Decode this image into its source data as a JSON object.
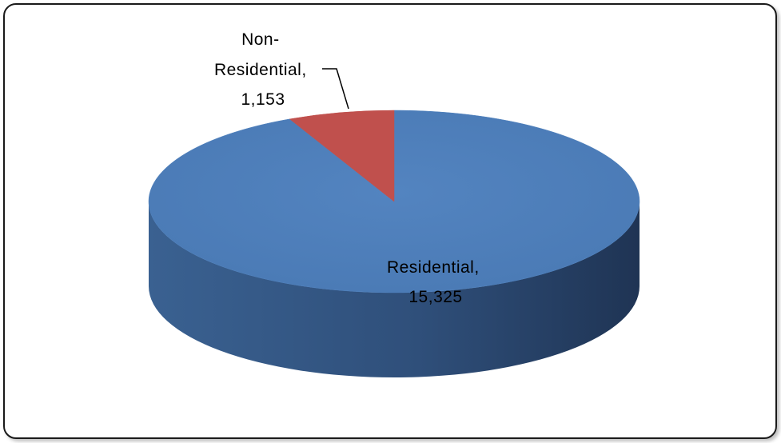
{
  "chart_data": {
    "type": "pie",
    "style": "3d",
    "slices": [
      {
        "label": "Residential",
        "value": 15325,
        "display_value": "15,325",
        "color": "#4f81bd",
        "side_color": "#2e4f7a"
      },
      {
        "label": "Non-Residential",
        "value": 1153,
        "display_value": "1,153",
        "color": "#c0504d",
        "side_color": "#7f2f2d"
      }
    ],
    "data_labels": {
      "residential": {
        "line1": "Residential,",
        "line2": "15,325"
      },
      "non_residential": {
        "line1": "Non-",
        "line2": "Residential,",
        "line3": "1,153"
      }
    },
    "legend": "none"
  }
}
